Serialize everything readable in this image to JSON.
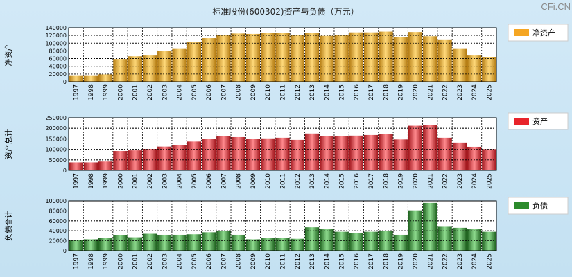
{
  "title": "标准股份(600302)资产与负债（万元）",
  "watermark": "CFi.CN",
  "colors": {
    "net_assets": "#f5a623",
    "total_assets": "#e8242b",
    "liabilities": "#2b8a2b",
    "plot_bg": "#ffffff",
    "grid": "#000000"
  },
  "chart_data": [
    {
      "type": "bar",
      "key": "net_assets",
      "ylabel": "净资产",
      "legend": "净资产",
      "ylim": [
        0,
        140000
      ],
      "yticks": [
        0,
        20000,
        40000,
        60000,
        80000,
        100000,
        120000,
        140000
      ],
      "ytick_labels": [
        "0",
        "20000",
        "40000",
        "60000",
        "80000",
        "100000",
        "120000",
        "140000"
      ],
      "categories": [
        "1997",
        "1998",
        "1999",
        "2000",
        "2001",
        "2002",
        "2003",
        "2004",
        "2005",
        "2006",
        "2007",
        "2008",
        "2009",
        "2010",
        "2011",
        "2012",
        "2013",
        "2014",
        "2015",
        "2016",
        "2017",
        "2018",
        "2019",
        "2020",
        "2021",
        "2022",
        "2023",
        "2024",
        "2025"
      ],
      "values": [
        15000,
        15000,
        19000,
        59000,
        66000,
        68000,
        80000,
        85000,
        103000,
        113000,
        121000,
        125000,
        124000,
        127000,
        127000,
        121000,
        126000,
        119000,
        121000,
        128000,
        128000,
        130000,
        116000,
        129000,
        118000,
        108000,
        85000,
        68000,
        63000
      ]
    },
    {
      "type": "bar",
      "key": "total_assets",
      "ylabel": "资产总计",
      "legend": "资产",
      "ylim": [
        0,
        250000
      ],
      "yticks": [
        0,
        50000,
        100000,
        150000,
        200000,
        250000
      ],
      "ytick_labels": [
        "0",
        "50000",
        "100000",
        "150000",
        "200000",
        "250000"
      ],
      "categories": [
        "1997",
        "1998",
        "1999",
        "2000",
        "2001",
        "2002",
        "2003",
        "2004",
        "2005",
        "2006",
        "2007",
        "2008",
        "2009",
        "2010",
        "2011",
        "2012",
        "2013",
        "2014",
        "2015",
        "2016",
        "2017",
        "2018",
        "2019",
        "2020",
        "2021",
        "2022",
        "2023",
        "2024",
        "2025"
      ],
      "values": [
        38000,
        38000,
        42000,
        92000,
        95000,
        102000,
        113000,
        120000,
        137000,
        150000,
        162000,
        158000,
        150000,
        152000,
        155000,
        145000,
        175000,
        162000,
        162000,
        165000,
        168000,
        172000,
        147000,
        212000,
        215000,
        155000,
        132000,
        112000,
        101000
      ]
    },
    {
      "type": "bar",
      "key": "liabilities",
      "ylabel": "负债合计",
      "legend": "负债",
      "ylim": [
        0,
        100000
      ],
      "yticks": [
        0,
        20000,
        40000,
        60000,
        80000,
        100000
      ],
      "ytick_labels": [
        "0",
        "20000",
        "40000",
        "60000",
        "80000",
        "100000"
      ],
      "categories": [
        "1997",
        "1998",
        "1999",
        "2000",
        "2001",
        "2002",
        "2003",
        "2004",
        "2005",
        "2006",
        "2007",
        "2008",
        "2009",
        "2010",
        "2011",
        "2012",
        "2013",
        "2014",
        "2015",
        "2016",
        "2017",
        "2018",
        "2019",
        "2020",
        "2021",
        "2022",
        "2023",
        "2024",
        "2025"
      ],
      "values": [
        22000,
        23000,
        25000,
        31000,
        27000,
        34000,
        32000,
        32000,
        33000,
        37000,
        40000,
        32000,
        23000,
        26000,
        26000,
        24000,
        47000,
        43000,
        38000,
        36000,
        38000,
        39000,
        32000,
        81000,
        96000,
        48000,
        46000,
        43000,
        38000
      ]
    }
  ]
}
